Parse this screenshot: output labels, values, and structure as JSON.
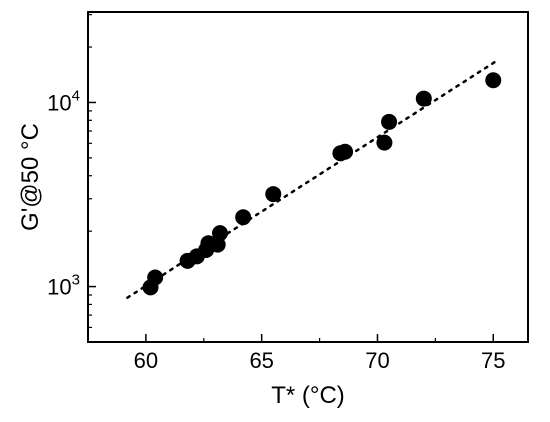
{
  "chart_data": {
    "type": "scatter",
    "xlabel": "T* (°C)",
    "ylabel": "G'@50 °C",
    "xlim": [
      57.5,
      76.5
    ],
    "ylim": [
      500,
      31000
    ],
    "yscale": "log",
    "grid": false,
    "x_ticks": [
      60,
      65,
      70,
      75
    ],
    "x_tick_labels": [
      "60",
      "65",
      "70",
      "75"
    ],
    "y_ticks": [
      1000,
      10000
    ],
    "y_tick_labels": [
      {
        "base": "10",
        "exp": "3"
      },
      {
        "base": "10",
        "exp": "4"
      }
    ],
    "points": [
      {
        "x": 60.2,
        "y": 990
      },
      {
        "x": 60.4,
        "y": 1120
      },
      {
        "x": 61.8,
        "y": 1380
      },
      {
        "x": 62.2,
        "y": 1460
      },
      {
        "x": 62.6,
        "y": 1580
      },
      {
        "x": 62.7,
        "y": 1720
      },
      {
        "x": 63.1,
        "y": 1690
      },
      {
        "x": 63.2,
        "y": 1950
      },
      {
        "x": 64.2,
        "y": 2380
      },
      {
        "x": 65.5,
        "y": 3180
      },
      {
        "x": 68.4,
        "y": 5300
      },
      {
        "x": 68.6,
        "y": 5400
      },
      {
        "x": 70.3,
        "y": 6050
      },
      {
        "x": 70.5,
        "y": 7850
      },
      {
        "x": 72.0,
        "y": 10500
      },
      {
        "x": 75.0,
        "y": 13200
      }
    ],
    "fit_line": {
      "style": "dotted",
      "x": [
        59.2,
        75.2
      ],
      "y": [
        870,
        17000
      ]
    },
    "marker_color": "#000000"
  }
}
